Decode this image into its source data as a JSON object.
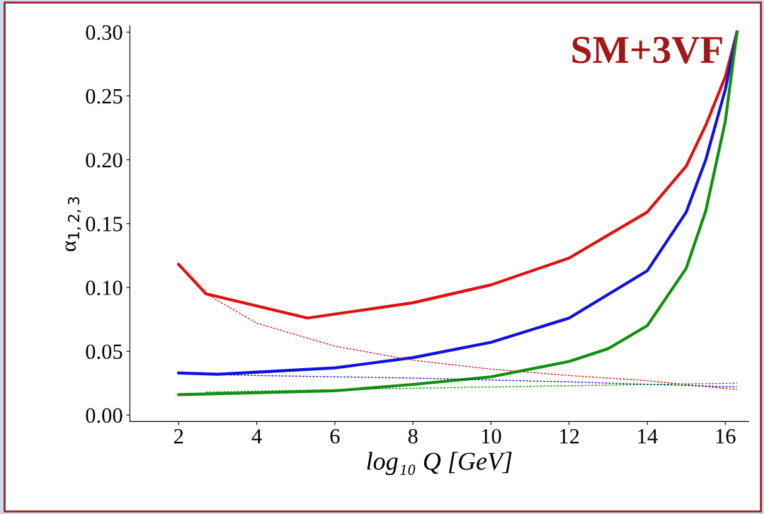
{
  "chart_data": {
    "type": "line",
    "xlabel": "log₁₀ Q [GeV]",
    "ylabel": "α$_{1,2,3}$",
    "annotations": [
      "SM+3VF"
    ],
    "xlim": [
      0.75,
      16.6
    ],
    "ylim": [
      -0.005,
      0.305
    ],
    "xticks": [
      2,
      4,
      6,
      8,
      10,
      12,
      14,
      16
    ],
    "yticks": [
      {
        "value": 0,
        "label": "0.00"
      },
      {
        "value": 0.05,
        "label": "0.05"
      },
      {
        "value": 0.1,
        "label": "0.10"
      },
      {
        "value": 0.15,
        "label": "0.15"
      },
      {
        "value": 0.2,
        "label": "0.20"
      },
      {
        "value": 0.25,
        "label": "0.25"
      },
      {
        "value": 0.3,
        "label": "0.30"
      }
    ],
    "grid": false,
    "legend": false,
    "marker": "none",
    "series": [
      {
        "color": "#e01010",
        "line_style": "solid",
        "x": [
          2,
          2.7,
          5.3,
          8,
          10,
          12,
          14,
          15,
          15.5,
          16,
          16.3
        ],
        "values": [
          0.118,
          0.095,
          0.076,
          0.088,
          0.102,
          0.123,
          0.159,
          0.195,
          0.227,
          0.265,
          0.3
        ]
      },
      {
        "color": "#1010e0",
        "line_style": "solid",
        "x": [
          2,
          3,
          6,
          8,
          10,
          12,
          14,
          15,
          15.5,
          16,
          16.3
        ],
        "values": [
          0.033,
          0.032,
          0.037,
          0.045,
          0.057,
          0.076,
          0.113,
          0.159,
          0.2,
          0.255,
          0.3
        ]
      },
      {
        "color": "#109010",
        "line_style": "solid",
        "x": [
          2,
          6,
          8,
          10,
          12,
          13,
          14,
          15,
          15.5,
          16,
          16.3
        ],
        "values": [
          0.016,
          0.019,
          0.024,
          0.03,
          0.042,
          0.052,
          0.07,
          0.115,
          0.16,
          0.23,
          0.3
        ]
      },
      {
        "color": "#e01010",
        "line_style": "dashed",
        "x": [
          2.7,
          4,
          6,
          8,
          10,
          12,
          14,
          16.3
        ],
        "values": [
          0.095,
          0.072,
          0.054,
          0.043,
          0.036,
          0.031,
          0.027,
          0.02
        ]
      },
      {
        "color": "#1010e0",
        "line_style": "dashed",
        "x": [
          2.7,
          4,
          8,
          12,
          16.3
        ],
        "values": [
          0.032,
          0.031,
          0.029,
          0.026,
          0.022
        ]
      },
      {
        "color": "#109010",
        "line_style": "dashed",
        "x": [
          2.7,
          6,
          10,
          14,
          16.3
        ],
        "values": [
          0.018,
          0.02,
          0.022,
          0.024,
          0.025
        ]
      }
    ]
  }
}
